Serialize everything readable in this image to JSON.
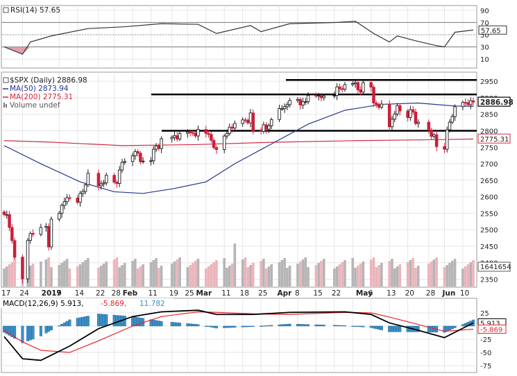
{
  "colors": {
    "up": "#1a1a1a",
    "down": "#cc1f3a",
    "ma50": "#27348b",
    "ma200": "#d12a42",
    "volume_up": "#b5b5b5",
    "volume_down": "#ecb4bb",
    "macd_line": "#000000",
    "signal_line": "#e8202a",
    "histogram": "#3b8fc7",
    "rsi_line": "#333333",
    "grid": "#e6e6e6",
    "resistance": "#000000"
  },
  "rsi": {
    "label": "RSI(14) 57.65",
    "current": "57.65",
    "ticks": [
      "90",
      "70",
      "50",
      "30",
      "10"
    ],
    "tick_values": [
      90,
      70,
      50,
      30,
      10
    ]
  },
  "price_panel": {
    "legend": [
      {
        "text": "$SPX (Daily) 2886.98",
        "icon": "square-box-icon",
        "color": "#222222"
      },
      {
        "text": "MA(50) 2873.94",
        "icon": "line-dash-icon",
        "color": "#27348b"
      },
      {
        "text": "MA(200) 2775.31",
        "icon": "line-dash-icon",
        "color": "#d12a42"
      },
      {
        "text": "Volume undef",
        "icon": "bar-icon",
        "color": "#555555"
      }
    ],
    "price_ticks": [
      "2950",
      "2900",
      "2850",
      "2800",
      "2750",
      "2700",
      "2650",
      "2600",
      "2550",
      "2500",
      "2450",
      "2400",
      "2350"
    ],
    "price_tick_values": [
      2950,
      2900,
      2850,
      2800,
      2750,
      2700,
      2650,
      2600,
      2550,
      2500,
      2450,
      2400,
      2350
    ],
    "last_price_label": "2886.98",
    "ma200_label": "2775.31",
    "volume_label": "1641654",
    "resistance_levels": [
      2954,
      2910,
      2800
    ]
  },
  "macd": {
    "label_prefix": "MACD(12,26,9)",
    "label_macd": "5.913",
    "label_signal": "-5.869",
    "label_hist": "11.782",
    "ticks": [
      "25",
      "0",
      "-25",
      "-50",
      "-75"
    ],
    "tick_values": [
      25,
      0,
      -25,
      -50,
      -75
    ],
    "macd_badge": "5.913",
    "signal_badge": "-5.869"
  },
  "x_axis": {
    "labels": [
      "17",
      "24",
      "2019",
      "7",
      "14",
      "22",
      "28",
      "Feb",
      "11",
      "19",
      "25",
      "Mar",
      "11",
      "18",
      "25",
      "Apr",
      "8",
      "15",
      "22",
      "May",
      "6",
      "13",
      "20",
      "28",
      "Jun",
      "10"
    ],
    "bold": [
      "2019",
      "Feb",
      "Mar",
      "Apr",
      "May",
      "Jun"
    ]
  },
  "chart_data": {
    "type": "candlestick",
    "title": "$SPX (Daily)",
    "ylim": [
      2330,
      2965
    ],
    "x_start": "2018-12-17",
    "x_end": "2019-06-14",
    "price": [
      {
        "d": "2018-12-17",
        "c": 2546
      },
      {
        "d": "2018-12-18",
        "c": 2546
      },
      {
        "d": "2018-12-19",
        "c": 2507
      },
      {
        "d": "2018-12-20",
        "c": 2467
      },
      {
        "d": "2018-12-21",
        "c": 2417
      },
      {
        "d": "2018-12-24",
        "c": 2351
      },
      {
        "d": "2018-12-26",
        "c": 2468
      },
      {
        "d": "2018-12-27",
        "c": 2489
      },
      {
        "d": "2018-12-28",
        "c": 2486
      },
      {
        "d": "2018-12-31",
        "c": 2507
      },
      {
        "d": "2019-01-02",
        "c": 2510
      },
      {
        "d": "2019-01-03",
        "c": 2448
      },
      {
        "d": "2019-01-04",
        "c": 2532
      },
      {
        "d": "2019-01-07",
        "c": 2550
      },
      {
        "d": "2019-01-08",
        "c": 2574
      },
      {
        "d": "2019-01-09",
        "c": 2585
      },
      {
        "d": "2019-01-10",
        "c": 2597
      },
      {
        "d": "2019-01-11",
        "c": 2596
      },
      {
        "d": "2019-01-14",
        "c": 2583
      },
      {
        "d": "2019-01-15",
        "c": 2610
      },
      {
        "d": "2019-01-16",
        "c": 2616
      },
      {
        "d": "2019-01-17",
        "c": 2636
      },
      {
        "d": "2019-01-18",
        "c": 2671
      },
      {
        "d": "2019-01-22",
        "c": 2633
      },
      {
        "d": "2019-01-23",
        "c": 2639
      },
      {
        "d": "2019-01-24",
        "c": 2642
      },
      {
        "d": "2019-01-25",
        "c": 2665
      },
      {
        "d": "2019-01-28",
        "c": 2644
      },
      {
        "d": "2019-01-29",
        "c": 2640
      },
      {
        "d": "2019-01-30",
        "c": 2681
      },
      {
        "d": "2019-01-31",
        "c": 2704
      },
      {
        "d": "2019-02-01",
        "c": 2707
      },
      {
        "d": "2019-02-04",
        "c": 2724
      },
      {
        "d": "2019-02-05",
        "c": 2737
      },
      {
        "d": "2019-02-06",
        "c": 2732
      },
      {
        "d": "2019-02-07",
        "c": 2706
      },
      {
        "d": "2019-02-08",
        "c": 2708
      },
      {
        "d": "2019-02-11",
        "c": 2709
      },
      {
        "d": "2019-02-12",
        "c": 2744
      },
      {
        "d": "2019-02-13",
        "c": 2754
      },
      {
        "d": "2019-02-14",
        "c": 2746
      },
      {
        "d": "2019-02-15",
        "c": 2776
      },
      {
        "d": "2019-02-19",
        "c": 2780
      },
      {
        "d": "2019-02-20",
        "c": 2785
      },
      {
        "d": "2019-02-21",
        "c": 2775
      },
      {
        "d": "2019-02-22",
        "c": 2792
      },
      {
        "d": "2019-02-25",
        "c": 2796
      },
      {
        "d": "2019-02-26",
        "c": 2794
      },
      {
        "d": "2019-02-27",
        "c": 2793
      },
      {
        "d": "2019-02-28",
        "c": 2784
      },
      {
        "d": "2019-03-01",
        "c": 2804
      },
      {
        "d": "2019-03-04",
        "c": 2792
      },
      {
        "d": "2019-03-05",
        "c": 2789
      },
      {
        "d": "2019-03-06",
        "c": 2771
      },
      {
        "d": "2019-03-07",
        "c": 2749
      },
      {
        "d": "2019-03-08",
        "c": 2743
      },
      {
        "d": "2019-03-11",
        "c": 2784
      },
      {
        "d": "2019-03-12",
        "c": 2792
      },
      {
        "d": "2019-03-13",
        "c": 2811
      },
      {
        "d": "2019-03-14",
        "c": 2808
      },
      {
        "d": "2019-03-15",
        "c": 2822
      },
      {
        "d": "2019-03-18",
        "c": 2833
      },
      {
        "d": "2019-03-19",
        "c": 2832
      },
      {
        "d": "2019-03-20",
        "c": 2824
      },
      {
        "d": "2019-03-21",
        "c": 2854
      },
      {
        "d": "2019-03-22",
        "c": 2800
      },
      {
        "d": "2019-03-25",
        "c": 2798
      },
      {
        "d": "2019-03-26",
        "c": 2818
      },
      {
        "d": "2019-03-27",
        "c": 2805
      },
      {
        "d": "2019-03-28",
        "c": 2815
      },
      {
        "d": "2019-03-29",
        "c": 2834
      },
      {
        "d": "2019-04-01",
        "c": 2867
      },
      {
        "d": "2019-04-02",
        "c": 2867
      },
      {
        "d": "2019-04-03",
        "c": 2873
      },
      {
        "d": "2019-04-04",
        "c": 2879
      },
      {
        "d": "2019-04-05",
        "c": 2892
      },
      {
        "d": "2019-04-08",
        "c": 2895
      },
      {
        "d": "2019-04-09",
        "c": 2878
      },
      {
        "d": "2019-04-10",
        "c": 2888
      },
      {
        "d": "2019-04-11",
        "c": 2888
      },
      {
        "d": "2019-04-12",
        "c": 2907
      },
      {
        "d": "2019-04-15",
        "c": 2905
      },
      {
        "d": "2019-04-16",
        "c": 2907
      },
      {
        "d": "2019-04-17",
        "c": 2900
      },
      {
        "d": "2019-04-18",
        "c": 2905
      },
      {
        "d": "2019-04-22",
        "c": 2907
      },
      {
        "d": "2019-04-23",
        "c": 2933
      },
      {
        "d": "2019-04-24",
        "c": 2927
      },
      {
        "d": "2019-04-25",
        "c": 2926
      },
      {
        "d": "2019-04-26",
        "c": 2940
      },
      {
        "d": "2019-04-29",
        "c": 2943
      },
      {
        "d": "2019-04-30",
        "c": 2946
      },
      {
        "d": "2019-05-01",
        "c": 2924
      },
      {
        "d": "2019-05-02",
        "c": 2917
      },
      {
        "d": "2019-05-03",
        "c": 2946
      },
      {
        "d": "2019-05-06",
        "c": 2932
      },
      {
        "d": "2019-05-07",
        "c": 2884
      },
      {
        "d": "2019-05-08",
        "c": 2880
      },
      {
        "d": "2019-05-09",
        "c": 2871
      },
      {
        "d": "2019-05-10",
        "c": 2881
      },
      {
        "d": "2019-05-13",
        "c": 2812
      },
      {
        "d": "2019-05-14",
        "c": 2835
      },
      {
        "d": "2019-05-15",
        "c": 2851
      },
      {
        "d": "2019-05-16",
        "c": 2876
      },
      {
        "d": "2019-05-17",
        "c": 2860
      },
      {
        "d": "2019-05-20",
        "c": 2840
      },
      {
        "d": "2019-05-21",
        "c": 2864
      },
      {
        "d": "2019-05-22",
        "c": 2857
      },
      {
        "d": "2019-05-23",
        "c": 2822
      },
      {
        "d": "2019-05-24",
        "c": 2826
      },
      {
        "d": "2019-05-28",
        "c": 2802
      },
      {
        "d": "2019-05-29",
        "c": 2783
      },
      {
        "d": "2019-05-30",
        "c": 2788
      },
      {
        "d": "2019-05-31",
        "c": 2752
      },
      {
        "d": "2019-06-03",
        "c": 2744
      },
      {
        "d": "2019-06-04",
        "c": 2803
      },
      {
        "d": "2019-06-05",
        "c": 2826
      },
      {
        "d": "2019-06-06",
        "c": 2843
      },
      {
        "d": "2019-06-07",
        "c": 2873
      },
      {
        "d": "2019-06-10",
        "c": 2886
      },
      {
        "d": "2019-06-11",
        "c": 2885
      },
      {
        "d": "2019-06-12",
        "c": 2879
      },
      {
        "d": "2019-06-13",
        "c": 2891
      },
      {
        "d": "2019-06-14",
        "c": 2887
      }
    ],
    "ma50": [
      {
        "d": "2018-12-17",
        "v": 2755
      },
      {
        "d": "2018-12-31",
        "v": 2700
      },
      {
        "d": "2019-01-15",
        "v": 2645
      },
      {
        "d": "2019-01-28",
        "v": 2615
      },
      {
        "d": "2019-02-08",
        "v": 2610
      },
      {
        "d": "2019-02-20",
        "v": 2625
      },
      {
        "d": "2019-03-04",
        "v": 2645
      },
      {
        "d": "2019-03-15",
        "v": 2700
      },
      {
        "d": "2019-03-29",
        "v": 2760
      },
      {
        "d": "2019-04-12",
        "v": 2820
      },
      {
        "d": "2019-04-26",
        "v": 2862
      },
      {
        "d": "2019-05-10",
        "v": 2880
      },
      {
        "d": "2019-05-24",
        "v": 2884
      },
      {
        "d": "2019-06-07",
        "v": 2875
      },
      {
        "d": "2019-06-14",
        "v": 2874
      }
    ],
    "ma200": [
      {
        "d": "2018-12-17",
        "v": 2770
      },
      {
        "d": "2019-01-02",
        "v": 2766
      },
      {
        "d": "2019-01-31",
        "v": 2755
      },
      {
        "d": "2019-02-28",
        "v": 2758
      },
      {
        "d": "2019-03-29",
        "v": 2765
      },
      {
        "d": "2019-04-30",
        "v": 2770
      },
      {
        "d": "2019-05-31",
        "v": 2773
      },
      {
        "d": "2019-06-14",
        "v": 2775
      }
    ],
    "rsi": [
      {
        "d": "2018-12-17",
        "v": 30
      },
      {
        "d": "2018-12-24",
        "v": 18
      },
      {
        "d": "2018-12-27",
        "v": 38
      },
      {
        "d": "2019-01-04",
        "v": 48
      },
      {
        "d": "2019-01-18",
        "v": 60
      },
      {
        "d": "2019-02-01",
        "v": 63
      },
      {
        "d": "2019-02-15",
        "v": 68
      },
      {
        "d": "2019-03-01",
        "v": 67
      },
      {
        "d": "2019-03-08",
        "v": 52
      },
      {
        "d": "2019-03-21",
        "v": 65
      },
      {
        "d": "2019-03-25",
        "v": 55
      },
      {
        "d": "2019-04-05",
        "v": 68
      },
      {
        "d": "2019-04-23",
        "v": 70
      },
      {
        "d": "2019-04-30",
        "v": 72
      },
      {
        "d": "2019-05-07",
        "v": 52
      },
      {
        "d": "2019-05-13",
        "v": 38
      },
      {
        "d": "2019-05-16",
        "v": 48
      },
      {
        "d": "2019-05-23",
        "v": 40
      },
      {
        "d": "2019-05-31",
        "v": 32
      },
      {
        "d": "2019-06-03",
        "v": 30
      },
      {
        "d": "2019-06-07",
        "v": 54
      },
      {
        "d": "2019-06-14",
        "v": 57.65
      }
    ],
    "macd": [
      {
        "d": "2018-12-17",
        "m": -20,
        "s": -8
      },
      {
        "d": "2018-12-24",
        "m": -62,
        "s": -30
      },
      {
        "d": "2018-12-31",
        "m": -65,
        "s": -46
      },
      {
        "d": "2019-01-11",
        "m": -38,
        "s": -50
      },
      {
        "d": "2019-01-22",
        "m": -5,
        "s": -28
      },
      {
        "d": "2019-02-04",
        "m": 18,
        "s": 0
      },
      {
        "d": "2019-02-15",
        "m": 27,
        "s": 18
      },
      {
        "d": "2019-03-01",
        "m": 30,
        "s": 27
      },
      {
        "d": "2019-03-08",
        "m": 22,
        "s": 26
      },
      {
        "d": "2019-03-22",
        "m": 22,
        "s": 23
      },
      {
        "d": "2019-04-05",
        "m": 26,
        "s": 22
      },
      {
        "d": "2019-04-26",
        "m": 27,
        "s": 26
      },
      {
        "d": "2019-05-06",
        "m": 22,
        "s": 25
      },
      {
        "d": "2019-05-13",
        "m": 6,
        "s": 17
      },
      {
        "d": "2019-05-24",
        "m": -8,
        "s": 3
      },
      {
        "d": "2019-06-03",
        "m": -22,
        "s": -10
      },
      {
        "d": "2019-06-14",
        "m": 5.913,
        "s": -5.869
      }
    ],
    "volume": {
      "typical": 2100000000,
      "spike_dates": [
        "2018-12-21",
        "2019-03-15"
      ],
      "last_value": 1641654
    }
  }
}
